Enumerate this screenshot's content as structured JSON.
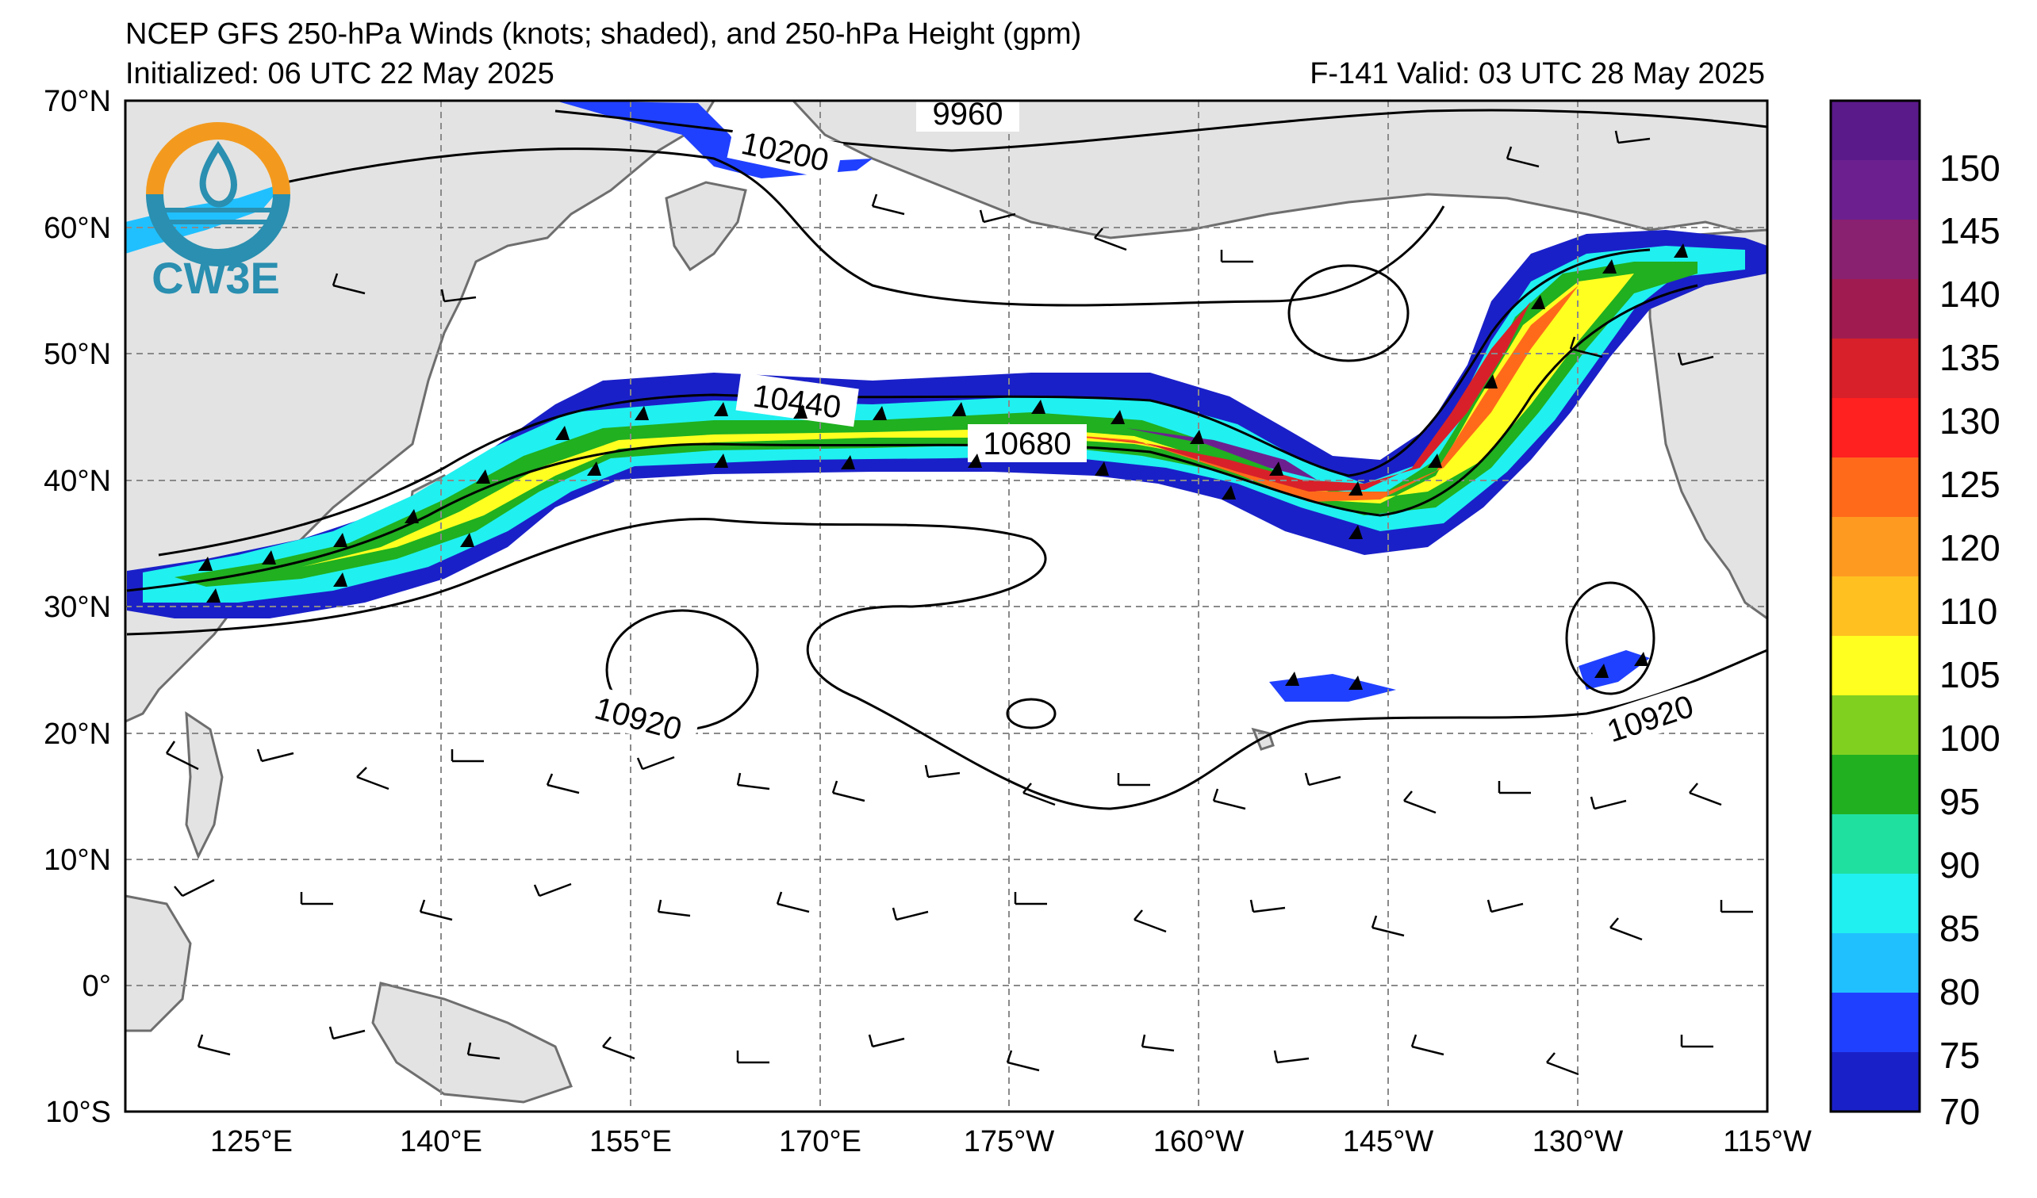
{
  "header": {
    "title": "NCEP GFS 250-hPa Winds (knots; shaded), and 250-hPa Height (gpm)",
    "initialized": "Initialized: 06 UTC 22 May 2025",
    "valid": "F-141  Valid: 03 UTC 28 May 2025"
  },
  "logo": {
    "text": "CW3E"
  },
  "axes": {
    "lat_labels": [
      "70°N",
      "60°N",
      "50°N",
      "40°N",
      "30°N",
      "20°N",
      "10°N",
      "0°",
      "10°S"
    ],
    "lon_labels": [
      "125°E",
      "140°E",
      "155°E",
      "170°E",
      "175°W",
      "160°W",
      "145°W",
      "130°W",
      "115°W"
    ]
  },
  "contour_labels": [
    "9960",
    "10200",
    "10440",
    "10680",
    "10920",
    "10920"
  ],
  "colorbar": {
    "labels": [
      "150",
      "145",
      "140",
      "135",
      "130",
      "125",
      "120",
      "110",
      "105",
      "100",
      "95",
      "90",
      "85",
      "80",
      "75",
      "70"
    ],
    "colors": [
      "#5a1a8a",
      "#6c2090",
      "#8a2070",
      "#a01c50",
      "#d8202a",
      "#ff2020",
      "#ff6a1a",
      "#ff9a20",
      "#ffc020",
      "#ffff20",
      "#80d020",
      "#20b020",
      "#20e0a0",
      "#20f0f0",
      "#20c0ff",
      "#2040ff",
      "#1a20c8"
    ]
  },
  "colors": {
    "land": "#e3e3e3",
    "ocean": "#ffffff",
    "grid": "#8a8a8a",
    "coast": "#707070"
  }
}
